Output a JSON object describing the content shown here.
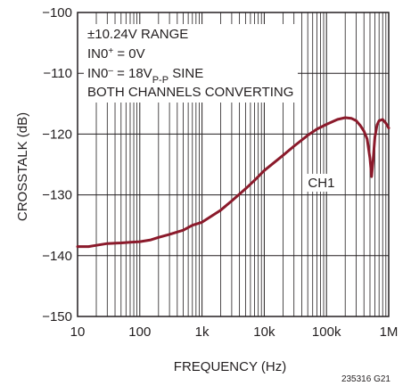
{
  "chart_data": {
    "type": "line",
    "xlabel": "FREQUENCY (Hz)",
    "ylabel": "CROSSTALK (dB)",
    "x_scale": "log",
    "xlim": [
      10,
      1000000
    ],
    "ylim": [
      -150,
      -100
    ],
    "grid": true,
    "x_ticks": [
      "10",
      "100",
      "1k",
      "10k",
      "100k",
      "1M"
    ],
    "y_ticks": [
      "−100",
      "−110",
      "−120",
      "−130",
      "−140",
      "−150"
    ],
    "annotations": {
      "line1": "±10.24V RANGE",
      "line2_a": "IN0",
      "line2_sup": "+",
      "line2_b": " = 0V",
      "line3_a": "IN0",
      "line3_sup": "–",
      "line3_b": " = 18V",
      "line3_sub": "P-P",
      "line3_c": " SINE",
      "line4": "BOTH CHANNELS CONVERTING"
    },
    "series": [
      {
        "name": "CH1",
        "color": "#8b1a2b",
        "x": [
          10,
          15,
          20,
          30,
          50,
          70,
          100,
          150,
          200,
          300,
          500,
          700,
          1000,
          2000,
          3000,
          5000,
          7000,
          10000,
          20000,
          30000,
          50000,
          70000,
          100000,
          150000,
          200000,
          250000,
          300000,
          350000,
          400000,
          450000,
          500000,
          530000,
          560000,
          600000,
          650000,
          700000,
          800000,
          900000,
          1000000
        ],
        "y": [
          -138.5,
          -138.5,
          -138.3,
          -138.0,
          -137.9,
          -137.8,
          -137.7,
          -137.4,
          -137.0,
          -136.5,
          -135.8,
          -135.0,
          -134.5,
          -132.5,
          -131.0,
          -129.0,
          -127.6,
          -126.0,
          -123.5,
          -122.0,
          -120.2,
          -119.2,
          -118.4,
          -117.6,
          -117.3,
          -117.4,
          -117.8,
          -118.6,
          -119.5,
          -120.8,
          -124.0,
          -127.0,
          -124.5,
          -120.5,
          -118.5,
          -117.8,
          -117.6,
          -118.2,
          -119.0
        ]
      }
    ],
    "series_label": "CH1",
    "figure_code": "235316 G21"
  }
}
